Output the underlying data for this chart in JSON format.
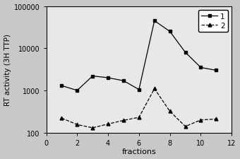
{
  "series1_x": [
    1,
    2,
    3,
    4,
    5,
    6,
    7,
    8,
    9,
    10,
    11
  ],
  "series1_y": [
    1300,
    1000,
    2200,
    2000,
    1700,
    1050,
    45000,
    25000,
    8000,
    3500,
    3000
  ],
  "series2_x": [
    1,
    2,
    3,
    4,
    5,
    6,
    7,
    8,
    9,
    10,
    11
  ],
  "series2_y": [
    220,
    155,
    130,
    160,
    195,
    230,
    1100,
    320,
    140,
    200,
    210
  ],
  "xlabel": "fractions",
  "ylabel": "RT activity (3H TTP)",
  "xlim": [
    0,
    12
  ],
  "ylim_log": [
    100,
    100000
  ],
  "xticks": [
    0,
    2,
    4,
    6,
    8,
    10,
    12
  ],
  "yticks": [
    100,
    1000,
    10000,
    100000
  ],
  "legend_labels": [
    "1",
    "2"
  ],
  "series1_color": "#000000",
  "series2_color": "#000000",
  "bg_color": "#c8c8c8",
  "plot_bg_color": "#e8e8e8"
}
